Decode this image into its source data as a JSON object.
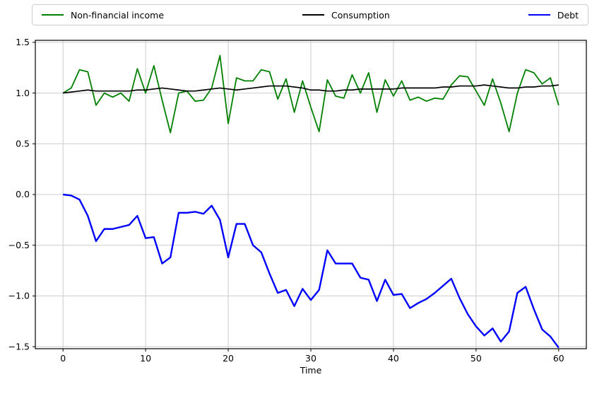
{
  "legend": {
    "items": [
      {
        "label": "Non-financial income",
        "color": "#008000"
      },
      {
        "label": "Consumption",
        "color": "#000000"
      },
      {
        "label": "Debt",
        "color": "#0000ff"
      }
    ]
  },
  "chart_data": {
    "type": "line",
    "title": "",
    "xlabel": "Time",
    "ylabel": "",
    "grid": true,
    "legend_position": "top-outside-horizontal",
    "xlim": [
      -3.35,
      63.35
    ],
    "ylim": [
      -1.52,
      1.52
    ],
    "x_ticks": [
      0,
      10,
      20,
      30,
      40,
      50,
      60
    ],
    "x_tick_labels": [
      "0",
      "10",
      "20",
      "30",
      "40",
      "50",
      "60"
    ],
    "y_ticks": [
      1.5,
      1.0,
      0.5,
      0.0,
      -0.5,
      -1.0,
      -1.5
    ],
    "y_tick_labels": [
      "1.5",
      "1.0",
      "0.5",
      "0.0",
      "−0.5",
      "−1.0",
      "−1.5"
    ],
    "x": [
      0,
      1,
      2,
      3,
      4,
      5,
      6,
      7,
      8,
      9,
      10,
      11,
      12,
      13,
      14,
      15,
      16,
      17,
      18,
      19,
      20,
      21,
      22,
      23,
      24,
      25,
      26,
      27,
      28,
      29,
      30,
      31,
      32,
      33,
      34,
      35,
      36,
      37,
      38,
      39,
      40,
      41,
      42,
      43,
      44,
      45,
      46,
      47,
      48,
      49,
      50,
      51,
      52,
      53,
      54,
      55,
      56,
      57,
      58,
      59,
      60
    ],
    "series": [
      {
        "name": "Non-financial income",
        "color": "#008000",
        "values": [
          1.0,
          1.05,
          1.23,
          1.21,
          0.88,
          1.0,
          0.96,
          1.0,
          0.92,
          1.24,
          1.0,
          1.27,
          0.93,
          0.61,
          1.0,
          1.02,
          0.92,
          0.93,
          1.05,
          1.37,
          0.7,
          1.15,
          1.12,
          1.12,
          1.23,
          1.21,
          0.94,
          1.14,
          0.81,
          1.12,
          0.86,
          0.62,
          1.13,
          0.97,
          0.95,
          1.18,
          1.0,
          1.2,
          0.81,
          1.13,
          0.97,
          1.12,
          0.93,
          0.96,
          0.92,
          0.95,
          0.94,
          1.08,
          1.17,
          1.16,
          1.02,
          0.88,
          1.14,
          0.9,
          0.62,
          1.0,
          1.23,
          1.2,
          1.09,
          1.15,
          0.88
        ]
      },
      {
        "name": "Consumption",
        "color": "#000000",
        "values": [
          1.0,
          1.01,
          1.02,
          1.03,
          1.02,
          1.02,
          1.02,
          1.02,
          1.02,
          1.03,
          1.03,
          1.04,
          1.05,
          1.04,
          1.03,
          1.02,
          1.02,
          1.03,
          1.04,
          1.05,
          1.04,
          1.03,
          1.04,
          1.05,
          1.06,
          1.07,
          1.07,
          1.07,
          1.06,
          1.05,
          1.03,
          1.03,
          1.02,
          1.02,
          1.03,
          1.03,
          1.04,
          1.04,
          1.04,
          1.04,
          1.04,
          1.05,
          1.05,
          1.05,
          1.05,
          1.05,
          1.06,
          1.06,
          1.07,
          1.07,
          1.07,
          1.08,
          1.07,
          1.06,
          1.05,
          1.05,
          1.06,
          1.06,
          1.07,
          1.07,
          1.08
        ]
      },
      {
        "name": "Debt",
        "color": "#0000ff",
        "values": [
          0.0,
          -0.01,
          -0.05,
          -0.21,
          -0.46,
          -0.34,
          -0.34,
          -0.32,
          -0.3,
          -0.21,
          -0.43,
          -0.42,
          -0.68,
          -0.62,
          -0.18,
          -0.18,
          -0.17,
          -0.19,
          -0.11,
          -0.25,
          -0.62,
          -0.29,
          -0.29,
          -0.5,
          -0.57,
          -0.78,
          -0.97,
          -0.94,
          -1.1,
          -0.93,
          -1.04,
          -0.94,
          -0.55,
          -0.68,
          -0.68,
          -0.68,
          -0.82,
          -0.84,
          -1.05,
          -0.84,
          -0.99,
          -0.98,
          -1.12,
          -1.07,
          -1.03,
          -0.97,
          -0.9,
          -0.83,
          -1.02,
          -1.18,
          -1.3,
          -1.39,
          -1.32,
          -1.45,
          -1.35,
          -0.97,
          -0.91,
          -1.13,
          -1.33,
          -1.4,
          -1.51
        ]
      }
    ],
    "style": {
      "grid_color": "#cccccc",
      "spine_color": "#000000",
      "tick_color": "#000000",
      "background": "#ffffff"
    }
  }
}
